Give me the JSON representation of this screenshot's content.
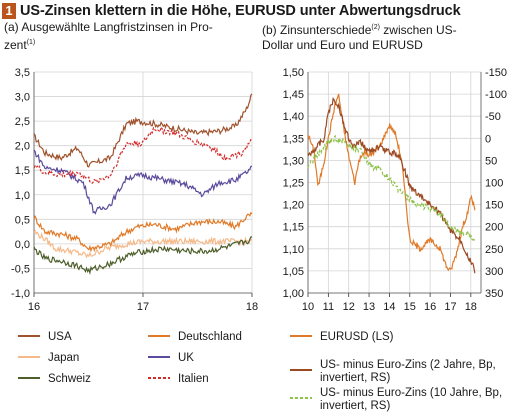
{
  "figure": {
    "number": "1",
    "title": "US-Zinsen klettern in die Höhe, EURUSD unter Abwertungsdruck",
    "left_subtitle_line1": "(a) Ausgewählte Langfristzinsen in Pro-",
    "left_subtitle_line2": "zent",
    "left_subtitle_sup": "(1)",
    "right_subtitle_line1_a": "(b) Zinsunterschiede",
    "right_subtitle_sup": "(2)",
    "right_subtitle_line1_b": " zwischen US-",
    "right_subtitle_line2": "Dollar und Euro und EURUSD"
  },
  "colors": {
    "usa": "#a0522d",
    "deutschland": "#e07a28",
    "japan": "#f5b98a",
    "uk": "#5c4a9c",
    "schweiz": "#4d5e2a",
    "italien": "#d42a2a",
    "eurusd": "#e07a28",
    "diff2y": "#9c4a22",
    "diff10y": "#8fc24a"
  },
  "chart_data": [
    {
      "type": "line",
      "title": "(a) Ausgewählte Langfristzinsen in Prozent",
      "xlim": [
        16,
        18
      ],
      "xticks": [
        "16",
        "17",
        "18"
      ],
      "ylim": [
        -1.0,
        3.5
      ],
      "yticks": [
        "3,5",
        "3,0",
        "2,5",
        "2,0",
        "1,5",
        "1,0",
        "0,5",
        "0,0",
        "-0,5",
        "-1,0"
      ],
      "grid": true,
      "legend_position": "bottom",
      "series": [
        {
          "name": "USA",
          "color_key": "usa",
          "style": "solid",
          "x": [
            16.0,
            16.1,
            16.25,
            16.4,
            16.5,
            16.7,
            16.85,
            16.95,
            17.1,
            17.3,
            17.5,
            17.7,
            17.85,
            17.95,
            18.0
          ],
          "values": [
            2.2,
            1.85,
            1.75,
            1.95,
            1.6,
            1.75,
            2.45,
            2.5,
            2.45,
            2.35,
            2.25,
            2.3,
            2.4,
            2.75,
            3.05
          ]
        },
        {
          "name": "Deutschland",
          "color_key": "deutschland",
          "style": "solid",
          "x": [
            16.0,
            16.1,
            16.25,
            16.4,
            16.5,
            16.7,
            16.85,
            16.95,
            17.1,
            17.3,
            17.5,
            17.7,
            17.85,
            17.95,
            18.0
          ],
          "values": [
            0.55,
            0.25,
            0.2,
            0.1,
            -0.1,
            0.0,
            0.25,
            0.35,
            0.4,
            0.3,
            0.45,
            0.45,
            0.35,
            0.55,
            0.6
          ]
        },
        {
          "name": "Japan",
          "color_key": "japan",
          "style": "solid",
          "x": [
            16.0,
            16.1,
            16.2,
            16.35,
            16.5,
            16.65,
            16.85,
            17.0,
            17.3,
            17.6,
            17.9,
            18.0
          ],
          "values": [
            0.25,
            0.1,
            -0.1,
            -0.15,
            -0.25,
            -0.1,
            0.0,
            0.05,
            0.05,
            0.05,
            0.05,
            0.05
          ]
        },
        {
          "name": "UK",
          "color_key": "uk",
          "style": "solid",
          "x": [
            16.0,
            16.1,
            16.25,
            16.45,
            16.55,
            16.7,
            16.85,
            17.0,
            17.2,
            17.4,
            17.55,
            17.7,
            17.85,
            17.95,
            18.0
          ],
          "values": [
            1.9,
            1.55,
            1.5,
            1.25,
            0.65,
            0.8,
            1.35,
            1.4,
            1.3,
            1.2,
            1.0,
            1.25,
            1.3,
            1.45,
            1.55
          ]
        },
        {
          "name": "Schweiz",
          "color_key": "schweiz",
          "style": "solid",
          "x": [
            16.0,
            16.1,
            16.25,
            16.4,
            16.5,
            16.7,
            16.85,
            17.0,
            17.2,
            17.4,
            17.6,
            17.8,
            17.95,
            18.0
          ],
          "values": [
            -0.1,
            -0.3,
            -0.35,
            -0.45,
            -0.55,
            -0.4,
            -0.25,
            -0.15,
            -0.1,
            -0.15,
            -0.15,
            -0.05,
            0.05,
            0.1
          ]
        },
        {
          "name": "Italien",
          "color_key": "italien",
          "style": "dashed",
          "x": [
            16.0,
            16.1,
            16.25,
            16.4,
            16.55,
            16.7,
            16.85,
            17.0,
            17.1,
            17.3,
            17.45,
            17.6,
            17.75,
            17.9,
            18.0
          ],
          "values": [
            1.6,
            1.45,
            1.4,
            1.45,
            1.25,
            1.4,
            2.05,
            2.05,
            2.35,
            2.25,
            2.1,
            2.0,
            1.75,
            1.85,
            2.1
          ]
        }
      ]
    },
    {
      "type": "line",
      "title": "(b) Zinsunterschiede zwischen US-Dollar und Euro und EURUSD",
      "xlim": [
        10,
        18.5
      ],
      "xticks": [
        "10",
        "11",
        "12",
        "13",
        "14",
        "15",
        "16",
        "17",
        "18"
      ],
      "ylim_left": [
        1.0,
        1.5
      ],
      "yticks_left": [
        "1,50",
        "1,45",
        "1,40",
        "1,35",
        "1,30",
        "1,25",
        "1,20",
        "1,15",
        "1,10",
        "1,05",
        "1,00"
      ],
      "ylim_right": [
        350,
        -150
      ],
      "yticks_right": [
        "-150",
        "-100",
        "-50",
        "0",
        "50",
        "100",
        "150",
        "200",
        "250",
        "300",
        "350"
      ],
      "grid": true,
      "legend_position": "bottom",
      "series": [
        {
          "name": "EURUSD (LS)",
          "color_key": "eurusd",
          "style": "solid",
          "axis": "left",
          "x": [
            10.0,
            10.3,
            10.5,
            10.8,
            11.0,
            11.3,
            11.5,
            11.8,
            12.0,
            12.3,
            12.5,
            12.8,
            13.0,
            13.5,
            14.0,
            14.3,
            14.6,
            15.0,
            15.5,
            16.0,
            16.5,
            16.8,
            17.0,
            17.3,
            17.6,
            17.9,
            18.0,
            18.2
          ],
          "values": [
            1.36,
            1.32,
            1.24,
            1.3,
            1.35,
            1.42,
            1.45,
            1.36,
            1.31,
            1.25,
            1.3,
            1.32,
            1.31,
            1.33,
            1.38,
            1.36,
            1.3,
            1.12,
            1.1,
            1.12,
            1.1,
            1.06,
            1.05,
            1.09,
            1.15,
            1.19,
            1.22,
            1.19
          ]
        },
        {
          "name": "US- minus Euro-Zins (2 Jahre, Bp, invertiert, RS)",
          "color_key": "diff2y",
          "style": "solid",
          "axis": "right",
          "x": [
            10.0,
            10.4,
            10.8,
            11.0,
            11.3,
            11.6,
            11.9,
            12.2,
            12.6,
            13.0,
            13.5,
            14.0,
            14.5,
            14.8,
            15.0,
            15.5,
            16.0,
            16.5,
            17.0,
            17.5,
            17.9,
            18.2
          ],
          "values": [
            40,
            20,
            0,
            -60,
            -90,
            -60,
            -10,
            20,
            10,
            30,
            20,
            30,
            40,
            80,
            110,
            130,
            150,
            170,
            210,
            230,
            270,
            300
          ]
        },
        {
          "name": "US- minus Euro-Zins (10 Jahre, Bp, invertiert, RS)",
          "color_key": "diff10y",
          "style": "dashed",
          "axis": "right",
          "x": [
            10.0,
            10.4,
            10.8,
            11.0,
            11.4,
            11.8,
            12.2,
            12.6,
            13.0,
            13.5,
            14.0,
            14.5,
            15.0,
            15.5,
            16.0,
            16.5,
            17.0,
            17.5,
            17.9,
            18.2
          ],
          "values": [
            60,
            40,
            20,
            10,
            0,
            10,
            20,
            30,
            60,
            70,
            90,
            120,
            140,
            150,
            160,
            170,
            200,
            215,
            215,
            230
          ]
        }
      ]
    }
  ]
}
